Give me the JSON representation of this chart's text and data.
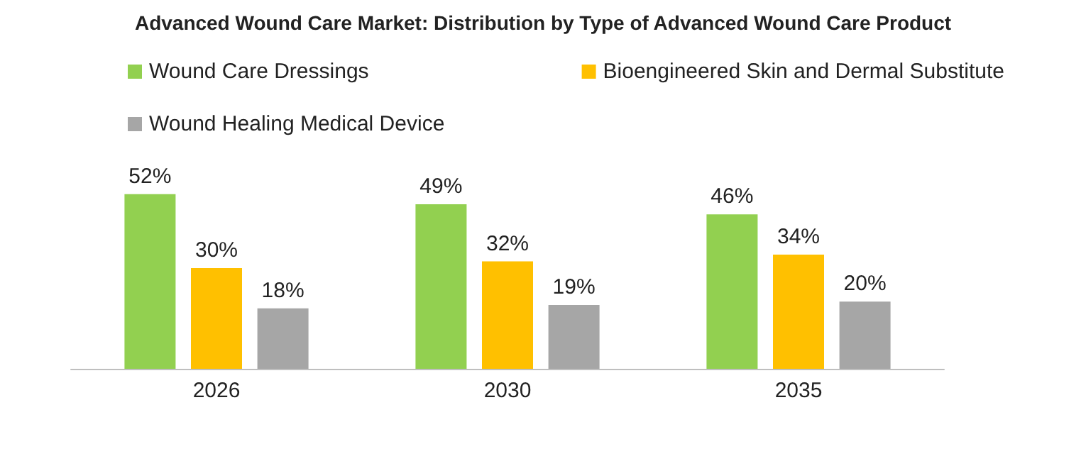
{
  "chart_data": {
    "type": "bar",
    "title": "Advanced Wound Care Market: Distribution by Type of Advanced Wound Care Product",
    "categories": [
      "2026",
      "2030",
      "2035"
    ],
    "legend": "top",
    "grid": false,
    "series": [
      {
        "name": "Wound Care Dressings",
        "color": "#92d050",
        "values": [
          52,
          49,
          46
        ],
        "value_labels": [
          "52%",
          "49%",
          "46%"
        ]
      },
      {
        "name": "Bioengineered Skin and Dermal Substitute",
        "color": "#ffc000",
        "values": [
          30,
          32,
          34
        ],
        "value_labels": [
          "30%",
          "32%",
          "34%"
        ]
      },
      {
        "name": "Wound Healing Medical Device",
        "color": "#a6a6a6",
        "values": [
          18,
          19,
          20
        ],
        "value_labels": [
          "18%",
          "19%",
          "20%"
        ]
      }
    ]
  }
}
